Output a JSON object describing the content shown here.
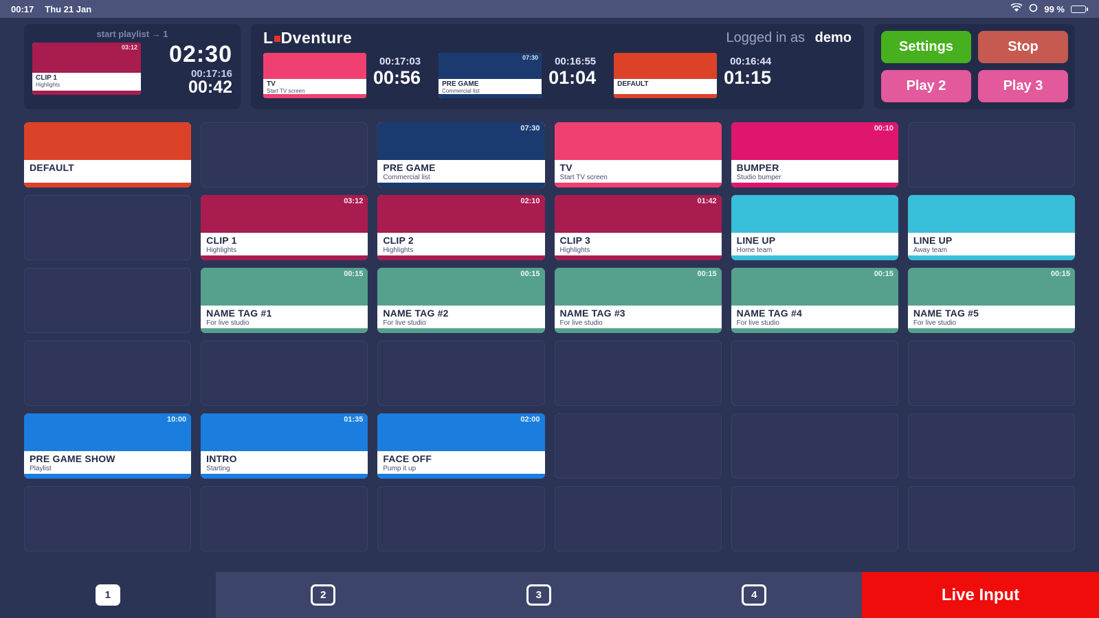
{
  "status_bar": {
    "time": "00:17",
    "date": "Thu 21 Jan",
    "battery_percent": "99 %"
  },
  "header": {
    "playlist_panel": {
      "label": "start playlist → 1",
      "thumb": {
        "title": "CLIP 1",
        "subtitle": "Highlights",
        "badge": "03:12",
        "color": "#a81c4f"
      },
      "countdown": "02:30",
      "clock": "00:17:16",
      "elapsed": "00:42"
    },
    "brand": {
      "logo_left": "L",
      "logo_right": "Dventure",
      "dot_color": "#e8322e"
    },
    "login": {
      "label": "Logged in as",
      "user": "demo"
    },
    "monitors": [
      {
        "thumb": {
          "title": "TV",
          "subtitle": "Start TV screen",
          "badge": "",
          "color": "#f04071"
        },
        "clock": "00:17:03",
        "countdown": "00:56"
      },
      {
        "thumb": {
          "title": "PRE GAME",
          "subtitle": "Commercial list",
          "badge": "07:30",
          "color": "#1b3a70"
        },
        "clock": "00:16:55",
        "countdown": "01:04"
      },
      {
        "thumb": {
          "title": "DEFAULT",
          "subtitle": "",
          "badge": "",
          "color": "#dc4228"
        },
        "clock": "00:16:44",
        "countdown": "01:15"
      }
    ],
    "buttons": [
      {
        "label": "Settings",
        "color": "#47b01e"
      },
      {
        "label": "Stop",
        "color": "#c65a50"
      },
      {
        "label": "Play 2",
        "color": "#e2599c"
      },
      {
        "label": "Play 3",
        "color": "#e2599c"
      }
    ]
  },
  "grid": {
    "rows": 6,
    "cols": 6,
    "cards": [
      {
        "row": 0,
        "col": 0,
        "title": "DEFAULT",
        "subtitle": "",
        "badge": "",
        "color": "#dc4228"
      },
      {
        "row": 0,
        "col": 2,
        "title": "PRE GAME",
        "subtitle": "Commercial list",
        "badge": "07:30",
        "color": "#1b3a70"
      },
      {
        "row": 0,
        "col": 3,
        "title": "TV",
        "subtitle": "Start TV screen",
        "badge": "",
        "color": "#f04071"
      },
      {
        "row": 0,
        "col": 4,
        "title": "BUMPER",
        "subtitle": "Studio bumper",
        "badge": "00:10",
        "color": "#e0156e"
      },
      {
        "row": 1,
        "col": 1,
        "title": "CLIP 1",
        "subtitle": "Highlights",
        "badge": "03:12",
        "color": "#a81c4f"
      },
      {
        "row": 1,
        "col": 2,
        "title": "CLIP 2",
        "subtitle": "Highlights",
        "badge": "02:10",
        "color": "#a81c4f"
      },
      {
        "row": 1,
        "col": 3,
        "title": "CLIP 3",
        "subtitle": "Highlights",
        "badge": "01:42",
        "color": "#a81c4f"
      },
      {
        "row": 1,
        "col": 4,
        "title": "LINE UP",
        "subtitle": "Home team",
        "badge": "",
        "color": "#38bfda"
      },
      {
        "row": 1,
        "col": 5,
        "title": "LINE UP",
        "subtitle": "Away team",
        "badge": "",
        "color": "#38bfda"
      },
      {
        "row": 2,
        "col": 1,
        "title": "NAME TAG #1",
        "subtitle": "For live studio",
        "badge": "00:15",
        "color": "#55a18d"
      },
      {
        "row": 2,
        "col": 2,
        "title": "NAME TAG #2",
        "subtitle": "For live studio",
        "badge": "00:15",
        "color": "#55a18d"
      },
      {
        "row": 2,
        "col": 3,
        "title": "NAME TAG #3",
        "subtitle": "For live studio",
        "badge": "00:15",
        "color": "#55a18d"
      },
      {
        "row": 2,
        "col": 4,
        "title": "NAME TAG #4",
        "subtitle": "For live studio",
        "badge": "00:15",
        "color": "#55a18d"
      },
      {
        "row": 2,
        "col": 5,
        "title": "NAME TAG #5",
        "subtitle": "For live studio",
        "badge": "00:15",
        "color": "#55a18d"
      },
      {
        "row": 4,
        "col": 0,
        "title": "PRE GAME SHOW",
        "subtitle": "Playlist",
        "badge": "10:00",
        "color": "#1b7ddd"
      },
      {
        "row": 4,
        "col": 1,
        "title": "INTRO",
        "subtitle": "Starting",
        "badge": "01:35",
        "color": "#1b7ddd"
      },
      {
        "row": 4,
        "col": 2,
        "title": "FACE OFF",
        "subtitle": "Pump it up",
        "badge": "02:00",
        "color": "#1b7ddd"
      }
    ]
  },
  "tab_bar": {
    "tabs": [
      {
        "label": "1",
        "selected": true
      },
      {
        "label": "2",
        "selected": false
      },
      {
        "label": "3",
        "selected": false
      },
      {
        "label": "4",
        "selected": false
      }
    ],
    "live_input_label": "Live Input"
  }
}
